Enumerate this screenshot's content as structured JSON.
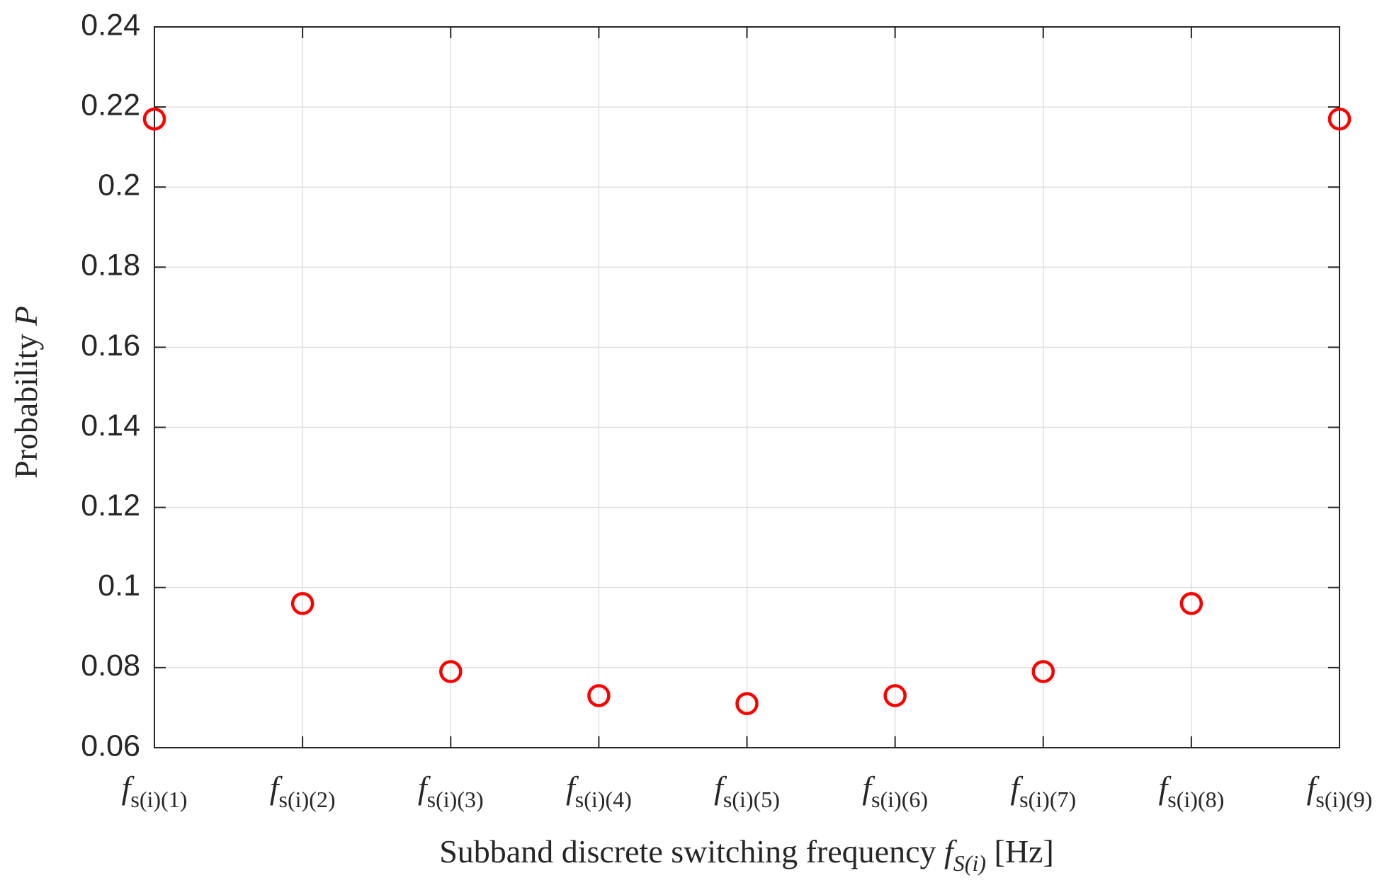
{
  "chart_data": {
    "type": "scatter",
    "ylabel": "Probability",
    "ylabel_symbol": "P",
    "xlabel": "Subband discrete switching frequency",
    "xlabel_symbol": "f",
    "xlabel_sub": "S(i)",
    "xlabel_unit": "[Hz]",
    "category_symbol": "f",
    "categories": [
      "s(i)(1)",
      "s(i)(2)",
      "s(i)(3)",
      "s(i)(4)",
      "s(i)(5)",
      "s(i)(6)",
      "s(i)(7)",
      "s(i)(8)",
      "s(i)(9)"
    ],
    "values": [
      0.217,
      0.096,
      0.079,
      0.073,
      0.071,
      0.073,
      0.079,
      0.096,
      0.217
    ],
    "color": "#ff0000",
    "ylim": [
      0.06,
      0.24
    ],
    "yticks": [
      0.06,
      0.08,
      0.1,
      0.12,
      0.14,
      0.16,
      0.18,
      0.2,
      0.22,
      0.24
    ],
    "grid": true
  }
}
